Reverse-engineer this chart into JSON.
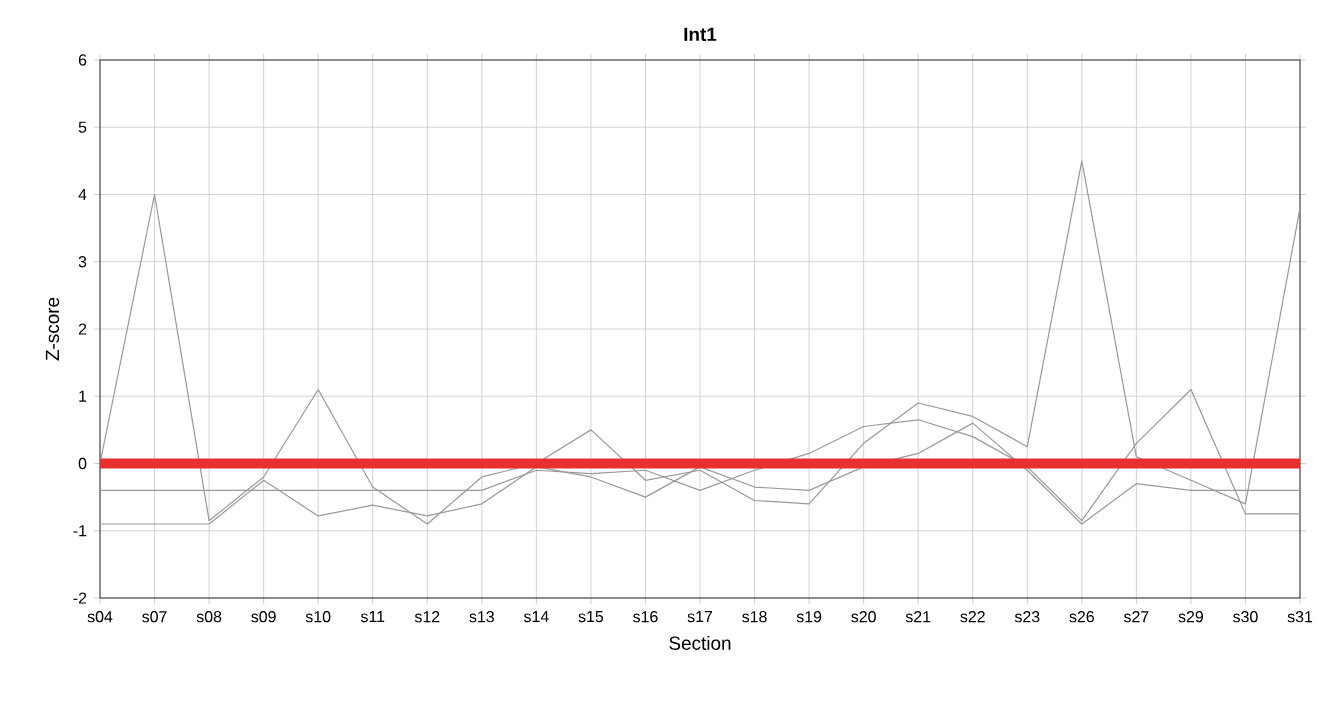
{
  "chart_data": {
    "type": "line",
    "title": "Int1",
    "xlabel": "Section",
    "ylabel": "Z-score",
    "categories": [
      "s04",
      "s07",
      "s08",
      "s09",
      "s10",
      "s11",
      "s12",
      "s13",
      "s14",
      "s15",
      "s16",
      "s17",
      "s18",
      "s19",
      "s20",
      "s21",
      "s22",
      "s23",
      "s26",
      "s27",
      "s29",
      "s30",
      "s31"
    ],
    "series": [
      {
        "color": "#999999",
        "values": [
          0,
          4.0,
          -0.85,
          -0.2,
          1.1,
          -0.35,
          -0.9,
          -0.2,
          0,
          0.5,
          -0.25,
          -0.1,
          -0.55,
          -0.6,
          0.3,
          0.9,
          0.7,
          0.25,
          4.5,
          0.1,
          -0.25,
          -0.6,
          3.8
        ]
      },
      {
        "color": "#999999",
        "values": [
          -0.4,
          -0.4,
          -0.4,
          -0.4,
          -0.4,
          -0.4,
          -0.4,
          -0.4,
          -0.1,
          -0.15,
          -0.1,
          -0.4,
          -0.1,
          0.15,
          0.55,
          0.65,
          0.4,
          -0.05,
          -0.85,
          0.3,
          1.1,
          -0.75,
          -0.75
        ]
      },
      {
        "color": "#999999",
        "values": [
          -0.9,
          -0.9,
          -0.9,
          -0.25,
          -0.78,
          -0.62,
          -0.78,
          -0.6,
          -0.05,
          -0.2,
          -0.5,
          -0.05,
          -0.35,
          -0.4,
          -0.05,
          0.15,
          0.6,
          -0.1,
          -0.9,
          -0.3,
          -0.4,
          -0.4,
          -0.4
        ]
      }
    ],
    "ref_lines": [
      {
        "axis": "y",
        "value": 0,
        "color": "#e83030"
      }
    ],
    "ylim": [
      -2,
      6
    ],
    "yticks": [
      -2,
      -1,
      0,
      1,
      2,
      3,
      4,
      5,
      6
    ],
    "grid": true,
    "marker": "none",
    "line_style": "solid"
  }
}
